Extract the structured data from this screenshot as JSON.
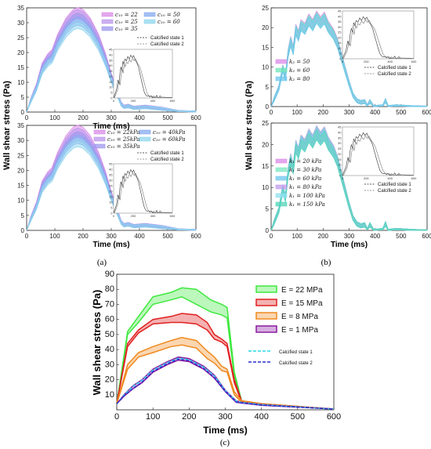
{
  "panels": {
    "a": {
      "caption": "(a)"
    },
    "b": {
      "caption": "(b)"
    },
    "c": {
      "caption": "(c)"
    }
  },
  "chart_data": [
    {
      "id": "a1",
      "type": "area",
      "xlabel": "Time (ms)",
      "ylabel": "Wall shear stress (Pa)",
      "xlim": [
        0,
        600
      ],
      "ylim": [
        0,
        35
      ],
      "xticks": [
        0,
        100,
        200,
        300,
        400,
        500,
        600
      ],
      "yticks": [
        0,
        5,
        10,
        15,
        20,
        25,
        30,
        35
      ],
      "series": [
        {
          "name": "c₁₀ = 22",
          "color": "#d98be8",
          "peak": 34.5
        },
        {
          "name": "c₁₀ = 25",
          "color": "#bb95ec",
          "peak": 33.8
        },
        {
          "name": "c₁₀ = 35",
          "color": "#9d98ee",
          "peak": 32.6
        },
        {
          "name": "c₁₀ = 50",
          "color": "#86aaf0",
          "peak": 31.4
        },
        {
          "name": "c₁₀ = 60",
          "color": "#8fd6ee",
          "peak": 30.2
        }
      ],
      "reference": [
        "Calcified state 1",
        "Calcified state 2"
      ],
      "inset": {
        "xticks": [
          0,
          200,
          400,
          600
        ],
        "yticks": [
          0,
          5,
          10,
          15,
          20,
          25,
          30,
          35,
          40,
          45
        ]
      }
    },
    {
      "id": "a2",
      "type": "area",
      "xlabel": "Time (ms)",
      "ylabel": "",
      "xlim": [
        0,
        600
      ],
      "ylim": [
        0,
        35
      ],
      "xticks": [
        0,
        100,
        200,
        300,
        400,
        500,
        600
      ],
      "yticks": [
        0,
        5,
        10,
        15,
        20,
        25,
        30,
        35
      ],
      "series": [
        {
          "name": "c₁₀ = 22kPa",
          "color": "#d98be8",
          "peak": 34.5
        },
        {
          "name": "c₁₀ = 25kPa",
          "color": "#bb95ec",
          "peak": 33.5
        },
        {
          "name": "c₁₀ = 35kPa",
          "color": "#9d98ee",
          "peak": 32.3
        },
        {
          "name": "c₁₀ = 40kPa",
          "color": "#86aaf0",
          "peak": 31.2
        },
        {
          "name": "c₁₀ = 60kPa",
          "color": "#8fd6ee",
          "peak": 30.0
        }
      ],
      "reference": [
        "Calcified state 1",
        "Calcified state 2"
      ],
      "inset": {
        "xticks": [
          0,
          200,
          400,
          600
        ],
        "yticks": [
          0,
          5,
          10,
          15,
          20,
          25,
          30,
          35,
          40,
          45
        ]
      }
    },
    {
      "id": "b1",
      "type": "area",
      "xlabel": "",
      "ylabel": "Wall shear stress (Pa)",
      "xlim": [
        0,
        600
      ],
      "ylim": [
        0,
        25
      ],
      "xticks": [
        0,
        100,
        200,
        300,
        400,
        500,
        600
      ],
      "yticks": [
        0,
        5,
        10,
        15,
        20,
        25
      ],
      "series": [
        {
          "name": "k₂ = 50",
          "color": "#d98be8",
          "peak": 23.8
        },
        {
          "name": "k₂ = 60",
          "color": "#6fe6b8",
          "peak": 23.4
        },
        {
          "name": "k₂ = 80",
          "color": "#6fc6ee",
          "peak": 23.0
        }
      ],
      "reference": [
        "Calcified state 1",
        "Calcified state 2"
      ],
      "inset": {
        "xticks": [
          0,
          200,
          400,
          600
        ],
        "yticks": [
          0,
          5,
          10,
          15,
          20,
          25,
          30,
          35,
          40,
          45
        ]
      }
    },
    {
      "id": "b2",
      "type": "area",
      "xlabel": "Time (ms)",
      "ylabel": "",
      "xlim": [
        0,
        600
      ],
      "ylim": [
        0,
        25
      ],
      "xticks": [
        0,
        100,
        200,
        300,
        400,
        500,
        600
      ],
      "yticks": [
        0,
        5,
        10,
        15,
        20,
        25
      ],
      "series": [
        {
          "name": "k₁ = 20 kPa",
          "color": "#d98be8",
          "peak": 24.0
        },
        {
          "name": "k₁ = 30 kPa",
          "color": "#7be6c0",
          "peak": 23.8
        },
        {
          "name": "k₁ = 60 kPa",
          "color": "#6fc6ee",
          "peak": 23.6
        },
        {
          "name": "k₁ = 80 kPa",
          "color": "#c39cec",
          "peak": 23.4
        },
        {
          "name": "k₁ = 100 kPa",
          "color": "#8fe0f2",
          "peak": 23.2
        },
        {
          "name": "k₁ = 150 kPa",
          "color": "#52d4b8",
          "peak": 23.0
        }
      ],
      "reference": [
        "Calcified state 1",
        "Calcified state 2"
      ],
      "inset": {
        "xticks": [
          0,
          200,
          400,
          600
        ],
        "yticks": [
          0,
          5,
          10,
          15,
          20,
          25,
          30,
          35,
          40,
          45
        ]
      }
    },
    {
      "id": "c",
      "type": "area",
      "xlabel": "Time (ms)",
      "ylabel": "Wall shear stress (Pa)",
      "xlim": [
        0,
        600
      ],
      "ylim": [
        0,
        90
      ],
      "xticks": [
        0,
        100,
        200,
        300,
        400,
        500,
        600
      ],
      "yticks": [
        10,
        20,
        30,
        40,
        50,
        60,
        70,
        80,
        90
      ],
      "series": [
        {
          "name": "E = 22 MPa",
          "color": "#3ee83e",
          "upper": [
            [
              0,
              4
            ],
            [
              30,
              52
            ],
            [
              60,
              62
            ],
            [
              100,
              75
            ],
            [
              150,
              78
            ],
            [
              180,
              81
            ],
            [
              220,
              80
            ],
            [
              260,
              73
            ],
            [
              290,
              70
            ],
            [
              305,
              68
            ],
            [
              325,
              25
            ],
            [
              345,
              6
            ],
            [
              400,
              4
            ],
            [
              600,
              0.5
            ]
          ],
          "lower": [
            [
              0,
              4
            ],
            [
              30,
              50
            ],
            [
              60,
              58
            ],
            [
              100,
              70
            ],
            [
              150,
              73
            ],
            [
              180,
              75
            ],
            [
              220,
              70
            ],
            [
              260,
              65
            ],
            [
              290,
              63
            ],
            [
              305,
              61
            ],
            [
              325,
              22
            ],
            [
              345,
              5
            ],
            [
              400,
              3.5
            ],
            [
              600,
              0.5
            ]
          ]
        },
        {
          "name": "E = 15 MPa",
          "color": "#e02020",
          "upper": [
            [
              0,
              4
            ],
            [
              30,
              44
            ],
            [
              60,
              53
            ],
            [
              100,
              60
            ],
            [
              150,
              62
            ],
            [
              180,
              64
            ],
            [
              220,
              63
            ],
            [
              250,
              58
            ],
            [
              270,
              50
            ],
            [
              290,
              47
            ],
            [
              305,
              44
            ],
            [
              325,
              20
            ],
            [
              345,
              6
            ],
            [
              400,
              4
            ],
            [
              600,
              0.5
            ]
          ],
          "lower": [
            [
              0,
              4
            ],
            [
              30,
              42
            ],
            [
              60,
              51
            ],
            [
              100,
              57
            ],
            [
              150,
              58
            ],
            [
              180,
              58
            ],
            [
              220,
              57
            ],
            [
              250,
              53
            ],
            [
              270,
              47
            ],
            [
              290,
              45
            ],
            [
              305,
              42
            ],
            [
              325,
              18
            ],
            [
              345,
              5
            ],
            [
              400,
              3.5
            ],
            [
              600,
              0.5
            ]
          ]
        },
        {
          "name": "E = 8 MPa",
          "color": "#f08a20",
          "upper": [
            [
              0,
              4
            ],
            [
              30,
              30
            ],
            [
              60,
              38
            ],
            [
              100,
              42
            ],
            [
              150,
              46
            ],
            [
              180,
              48
            ],
            [
              220,
              46
            ],
            [
              250,
              39
            ],
            [
              270,
              35
            ],
            [
              290,
              29
            ],
            [
              305,
              27
            ],
            [
              325,
              12
            ],
            [
              345,
              6
            ],
            [
              400,
              4
            ],
            [
              600,
              0.5
            ]
          ],
          "lower": [
            [
              0,
              4
            ],
            [
              30,
              27
            ],
            [
              60,
              35
            ],
            [
              100,
              38
            ],
            [
              150,
              42
            ],
            [
              180,
              43
            ],
            [
              220,
              41
            ],
            [
              250,
              34
            ],
            [
              270,
              31
            ],
            [
              290,
              26
            ],
            [
              305,
              25
            ],
            [
              325,
              10
            ],
            [
              345,
              5
            ],
            [
              400,
              3.5
            ],
            [
              600,
              0.5
            ]
          ]
        },
        {
          "name": "E = 1 MPa",
          "color": "#8a1aa0",
          "upper": [
            [
              0,
              4
            ],
            [
              20,
              10
            ],
            [
              45,
              16
            ],
            [
              70,
              20
            ],
            [
              100,
              27
            ],
            [
              140,
              32
            ],
            [
              170,
              35
            ],
            [
              200,
              34
            ],
            [
              240,
              29
            ],
            [
              270,
              23
            ],
            [
              300,
              13
            ],
            [
              330,
              6
            ],
            [
              345,
              5
            ],
            [
              400,
              3.5
            ],
            [
              600,
              0.5
            ]
          ],
          "lower": [
            [
              0,
              4
            ],
            [
              20,
              9
            ],
            [
              45,
              14
            ],
            [
              70,
              18
            ],
            [
              100,
              25
            ],
            [
              140,
              30
            ],
            [
              170,
              33
            ],
            [
              200,
              32
            ],
            [
              240,
              27
            ],
            [
              270,
              21
            ],
            [
              300,
              12
            ],
            [
              330,
              5
            ],
            [
              345,
              4.5
            ],
            [
              400,
              3
            ],
            [
              600,
              0.5
            ]
          ]
        }
      ],
      "reference_series": [
        {
          "name": "Calcified state 1",
          "color": "#2ad8e8",
          "dash": "dashed"
        },
        {
          "name": "Calcified state 2",
          "color": "#2a2ad0",
          "dash": "dashed"
        }
      ]
    }
  ]
}
